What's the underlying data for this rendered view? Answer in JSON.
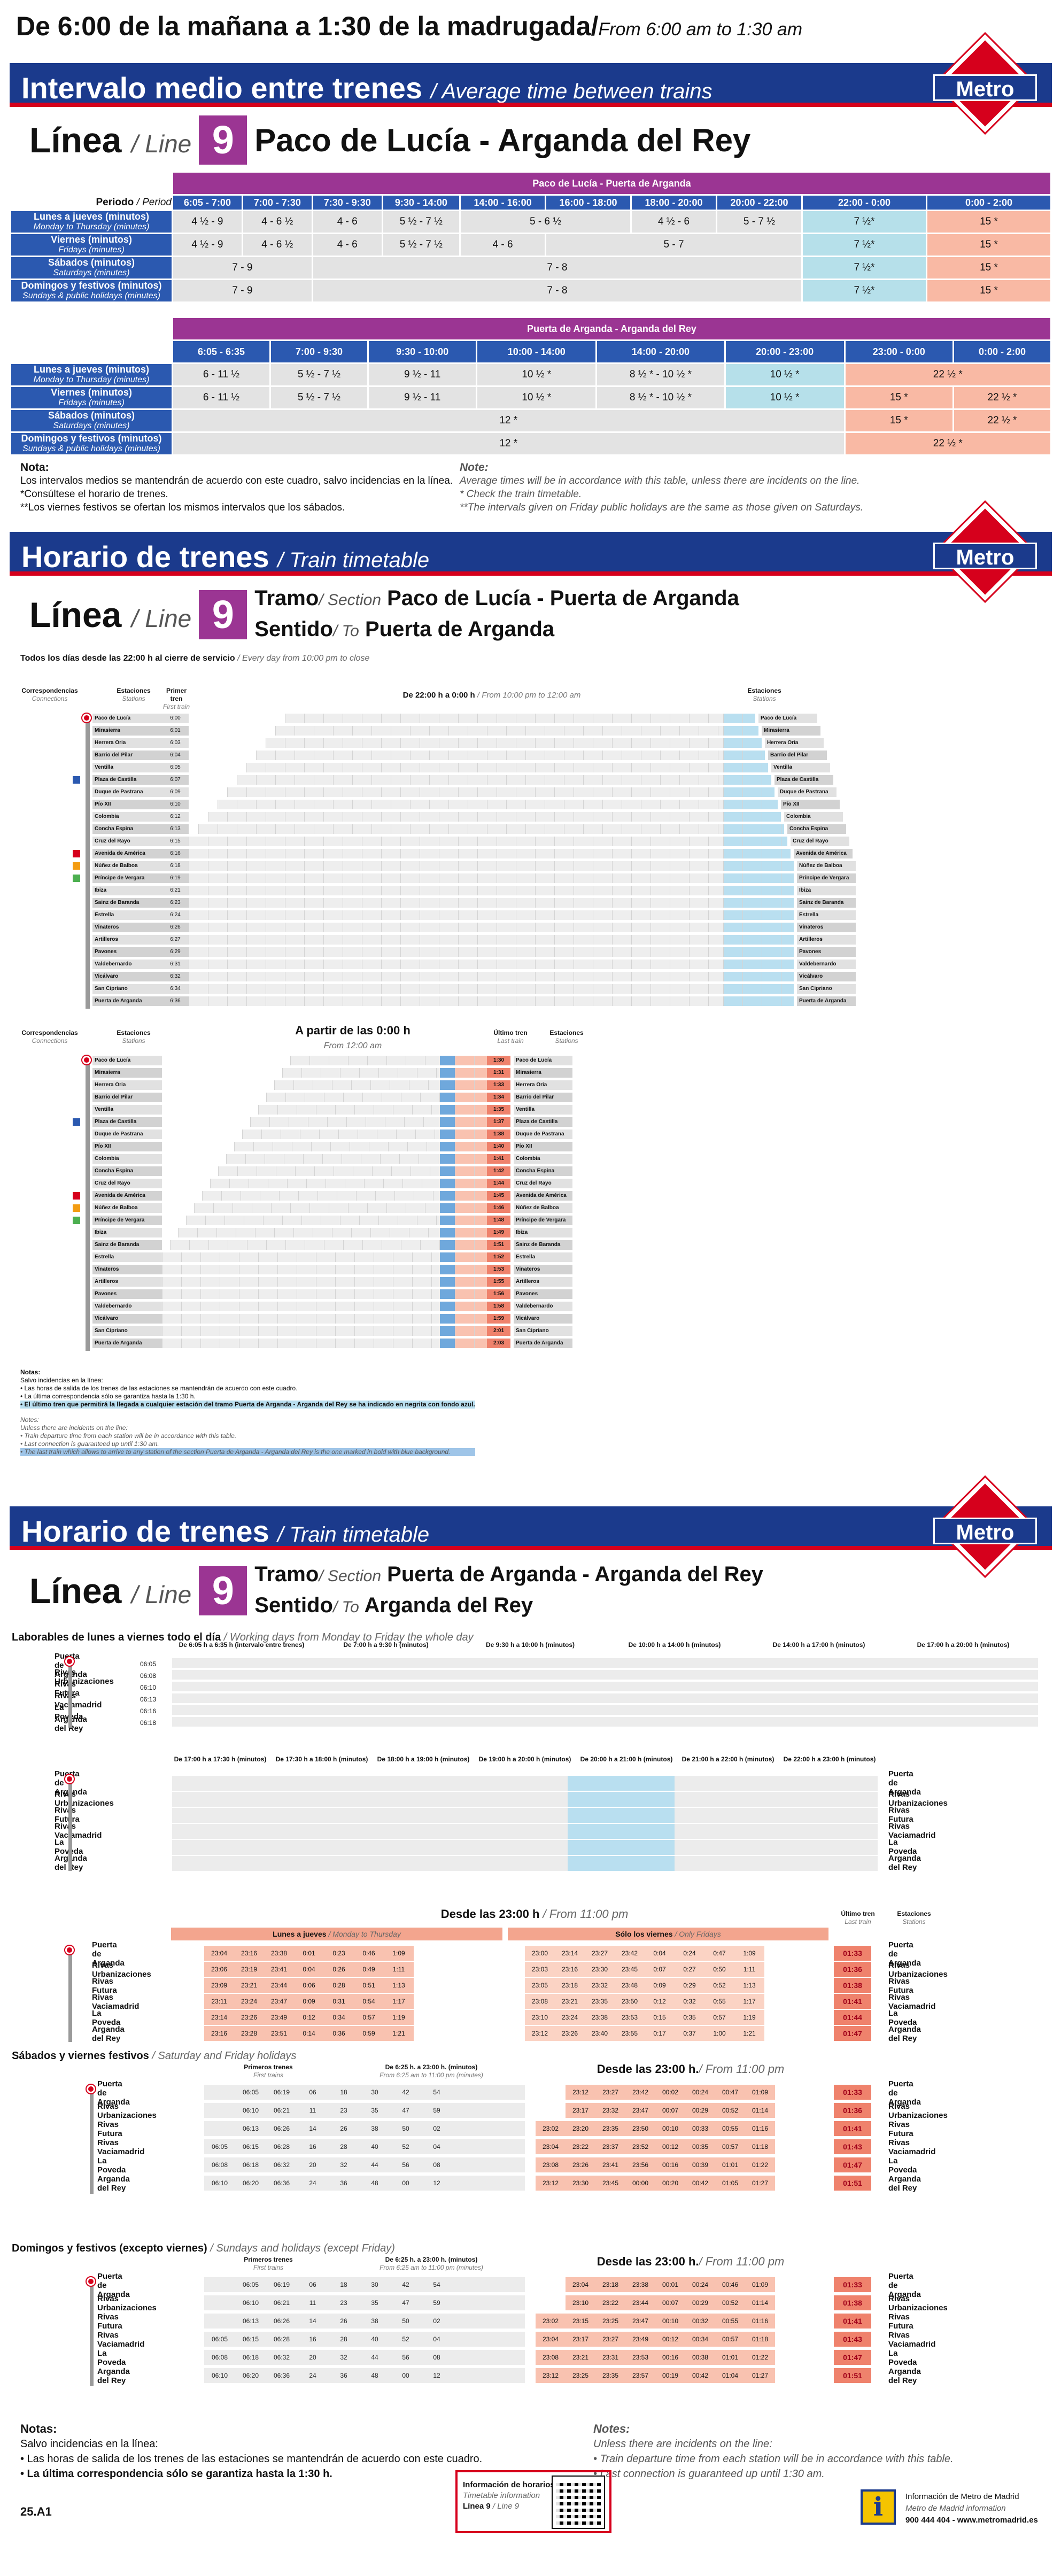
{
  "hours": {
    "es": "De 6:00 de la mañana a 1:30 de la madrugada",
    "sep": "/",
    "en": "From 6:00 am to 1:30 am"
  },
  "logo": {
    "text": "Metro",
    "colors": {
      "red": "#d6001c",
      "blue": "#1b3a8c"
    }
  },
  "band1": {
    "es": "Intervalo medio entre trenes",
    "en": "/ Average time between trains"
  },
  "line_label": {
    "es": "Línea",
    "en": "/ Line",
    "number": "9",
    "color": "#9b3593"
  },
  "line_name": "Paco de Lucía - Arganda del Rey",
  "interval_table_1": {
    "section": "Paco de Lucía - Puerta de Arganda",
    "period_label": "Periodo",
    "period_label_en": "/ Period",
    "headers": [
      "6:05 - 7:00",
      "7:00 - 7:30",
      "7:30 - 9:30",
      "9:30 - 14:00",
      "14:00 - 16:00",
      "16:00 - 18:00",
      "18:00 - 20:00",
      "20:00 - 22:00",
      "22:00 - 0:00",
      "0:00 - 2:00"
    ],
    "rows": [
      {
        "es": "Lunes a jueves",
        "unit": "(minutos)",
        "en": "Monday to Thursday (minutes)",
        "cells": [
          "4 ½ - 9",
          "4 - 6 ½",
          "4 - 6",
          "5 ½ - 7 ½",
          "5 - 6 ½",
          "4 ½ - 6",
          "5 - 7 ½",
          "7 ½*",
          "15 *"
        ]
      },
      {
        "es": "Viernes",
        "unit": "(minutos)",
        "en": "Fridays (minutes)",
        "cells": [
          "4 ½ - 9",
          "4 - 6 ½",
          "4 - 6",
          "5 ½ - 7 ½",
          "4 - 6",
          "5 - 7",
          "7 ½*",
          "15 *"
        ]
      },
      {
        "es": "Sábados",
        "unit": "(minutos)",
        "en": "Saturdays (minutes)",
        "cells": [
          "7 - 9",
          "7 - 8",
          "7 ½*",
          "15 *"
        ]
      },
      {
        "es": "Domingos y festivos",
        "unit": "(minutos)",
        "en": "Sundays & public holidays (minutes)",
        "cells": [
          "7 - 9",
          "7 - 8",
          "7 ½*",
          "15 *"
        ]
      }
    ]
  },
  "interval_table_2": {
    "section": "Puerta de Arganda - Arganda del Rey",
    "headers": [
      "6:05 - 6:35",
      "7:00 - 9:30",
      "9:30 - 10:00",
      "10:00 - 14:00",
      "14:00 - 20:00",
      "20:00 - 23:00",
      "23:00 - 0:00",
      "0:00 - 2:00"
    ],
    "rows": [
      {
        "es": "Lunes a jueves",
        "unit": "(minutos)",
        "en": "Monday to Thursday (minutes)",
        "cells": [
          "6 - 11 ½",
          "5 ½ - 7 ½",
          "9 ½ - 11",
          "10 ½ *",
          "8 ½ * - 10 ½ *",
          "10 ½ *",
          "22 ½ *"
        ]
      },
      {
        "es": "Viernes",
        "unit": "(minutos)",
        "en": "Fridays (minutes)",
        "cells": [
          "6 - 11 ½",
          "5 ½ - 7 ½",
          "9 ½ - 11",
          "10 ½ *",
          "8 ½ * - 10 ½ *",
          "10 ½ *",
          "15 *",
          "22 ½ *"
        ]
      },
      {
        "es": "Sábados",
        "unit": "(minutos)",
        "en": "Saturdays (minutes)",
        "cells": [
          "12 *",
          "15 *",
          "22 ½ *"
        ]
      },
      {
        "es": "Domingos y festivos",
        "unit": "(minutos)",
        "en": "Sundays & public holidays (minutes)",
        "cells": [
          "12 *",
          "22 ½ *"
        ]
      }
    ]
  },
  "notes_1": {
    "title": "Nota:",
    "lines": [
      "Los intervalos medios se mantendrán de acuerdo con este cuadro, salvo incidencias en la línea.",
      "*Consúltese el horario de trenes.",
      "**Los viernes festivos se ofertan los mismos intervalos que los sábados."
    ],
    "title_en": "Note:",
    "lines_en": [
      "Average times will be in accordance with this table, unless there are incidents on the line.",
      "* Check the train timetable.",
      "**The intervals given on Friday public holidays are the same as those given on Saturdays."
    ]
  },
  "band2": {
    "es": "Horario de trenes",
    "en": "/ Train timetable"
  },
  "tt1": {
    "tramo": "Tramo",
    "tramo_en": "/ Section",
    "tramo_val": "Paco de Lucía - Puerta de Arganda",
    "sentido": "Sentido",
    "sentido_en": "/ To",
    "sentido_val": "Puerta de Arganda",
    "caption": "Todos los días desde las 22:00 h al cierre de servicio",
    "caption_en": "/ Every day from 10:00 pm to close",
    "col_conn": "Correspondencias",
    "col_conn_en": "Connections",
    "col_st": "Estaciones",
    "col_st_en": "Stations",
    "col_first": "Primer tren",
    "col_first_en": "First train",
    "block1_head": "De 22:00 h a 0:00 h",
    "block1_head_en": "/ From 10:00 pm to 12:00 am",
    "block2_head": "A partir de las 0:00 h",
    "block2_head_en": "From 12:00 am",
    "last_train": "Último tren",
    "last_train_en": "Last train",
    "stations": [
      "Paco de Lucía",
      "Mirasierra",
      "Herrera Oria",
      "Barrio del Pilar",
      "Ventilla",
      "Plaza de Castilla",
      "Duque de Pastrana",
      "Pío XII",
      "Colombia",
      "Concha Espina",
      "Cruz del Rayo",
      "Avenida de América",
      "Núñez de Balboa",
      "Príncipe de Vergara",
      "Ibiza",
      "Sainz de Baranda",
      "Estrella",
      "Vinateros",
      "Artilleros",
      "Pavones",
      "Valdebernardo",
      "Vicálvaro",
      "San Cipriano",
      "Puerta de Arganda"
    ],
    "first_times": [
      "6:00",
      "6:01",
      "6:03",
      "6:04",
      "6:05",
      "6:07",
      "6:09",
      "6:10",
      "6:12",
      "6:13",
      "6:15",
      "6:16",
      "6:18",
      "6:19",
      "6:21",
      "6:23",
      "6:24",
      "6:26",
      "6:27",
      "6:29",
      "6:31",
      "6:32",
      "6:34",
      "6:36"
    ],
    "last_times": [
      "1:30",
      "1:31",
      "1:33",
      "1:34",
      "1:35",
      "1:37",
      "1:38",
      "1:40",
      "1:41",
      "1:42",
      "1:44",
      "1:45",
      "1:46",
      "1:48",
      "1:49",
      "1:51",
      "1:52",
      "1:53",
      "1:55",
      "1:56",
      "1:58",
      "1:59",
      "2:01",
      "2:03"
    ],
    "notes": [
      "Notas:",
      "Salvo incidencias en la línea:",
      "• Las horas de salida de los trenes de las estaciones se mantendrán de acuerdo con este cuadro.",
      "• La última correspondencia sólo se garantiza hasta la 1:30 h.",
      "• El último tren que permitirá la llegada a cualquier estación del tramo Puerta de Arganda - Arganda del Rey se ha indicado en negrita con fondo azul."
    ],
    "notes_en": [
      "Notes:",
      "Unless there are incidents on the line:",
      "• Train departure time from each station will be in accordance with this table.",
      "• Last connection is guaranteed up until 1:30 am.",
      "• The last train which allows to arrive to any station of the section Puerta de Arganda - Arganda del Rey is the one marked in bold with blue background."
    ]
  },
  "band3": {
    "es": "Horario de trenes",
    "en": "/ Train timetable"
  },
  "tt2": {
    "tramo_val": "Puerta de Arganda - Arganda del Rey",
    "sentido_val": "Arganda del Rey",
    "caption": "Laborables de lunes a viernes todo el día",
    "caption_en": "/ Working days from Monday to Friday the whole day",
    "stations": [
      "Puerta de Arganda",
      "Rivas Urbanizaciones",
      "Rivas Futura",
      "Rivas Vaciamadrid",
      "La Poveda",
      "Arganda del Rey"
    ],
    "first_times": [
      "06:05",
      "06:08",
      "06:10",
      "06:13",
      "06:16",
      "06:18"
    ],
    "weekday_blocks": [
      "De 6:05 h a 6:35 h (intervalo entre trenes)",
      "De 7:00 h a 9:30 h (minutos)",
      "De 9:30 h a 10:00 h (minutos)",
      "De 10:00 h a 14:00 h (minutos)",
      "De 14:00 h a 17:00 h (minutos)",
      "De 17:00 h a 20:00 h (minutos)"
    ],
    "weekday_blocks_2": [
      "De 17:00 h a 17:30 h (minutos)",
      "De 17:30 h a 18:00 h (minutos)",
      "De 18:00 h a 19:00 h (minutos)",
      "De 19:00 h a 20:00 h (minutos)",
      "De 20:00 h a 21:00 h (minutos)",
      "De 21:00 h a 22:00 h (minutos)",
      "De 22:00 h a 23:00 h (minutos)"
    ],
    "night_head": "Desde las 23:00 h",
    "night_head_en": "/ From 11:00 pm",
    "mon_thu": "Lunes a jueves",
    "mon_thu_en": "/ Monday to Thursday",
    "fri_only": "Sólo los viernes",
    "fri_only_en": "/ Only Fridays",
    "night_mon_thu": [
      [
        "23:04",
        "23:16",
        "23:38",
        "0:01",
        "0:23",
        "0:46",
        "1:09"
      ],
      [
        "23:06",
        "23:19",
        "23:41",
        "0:04",
        "0:26",
        "0:49",
        "1:11"
      ],
      [
        "23:09",
        "23:21",
        "23:44",
        "0:06",
        "0:28",
        "0:51",
        "1:13"
      ],
      [
        "23:11",
        "23:24",
        "23:47",
        "0:09",
        "0:31",
        "0:54",
        "1:17"
      ],
      [
        "23:14",
        "23:26",
        "23:49",
        "0:12",
        "0:34",
        "0:57",
        "1:19"
      ],
      [
        "23:16",
        "23:28",
        "23:51",
        "0:14",
        "0:36",
        "0:59",
        "1:21"
      ]
    ],
    "night_fri": [
      [
        "23:00",
        "23:14",
        "23:27",
        "23:42",
        "0:04",
        "0:24",
        "0:47",
        "1:09"
      ],
      [
        "23:03",
        "23:16",
        "23:30",
        "23:45",
        "0:07",
        "0:27",
        "0:50",
        "1:11"
      ],
      [
        "23:05",
        "23:18",
        "23:32",
        "23:48",
        "0:09",
        "0:29",
        "0:52",
        "1:13"
      ],
      [
        "23:08",
        "23:21",
        "23:35",
        "23:50",
        "0:12",
        "0:32",
        "0:55",
        "1:17"
      ],
      [
        "23:10",
        "23:24",
        "23:38",
        "23:53",
        "0:15",
        "0:35",
        "0:57",
        "1:19"
      ],
      [
        "23:12",
        "23:26",
        "23:40",
        "23:55",
        "0:17",
        "0:37",
        "1:00",
        "1:21"
      ]
    ],
    "night_last": [
      "01:33",
      "01:36",
      "01:38",
      "01:41",
      "01:44",
      "01:47"
    ],
    "sat_title": "Sábados y viernes festivos",
    "sat_title_en": "/ Saturday and Friday holidays",
    "sun_title": "Domingos y festivos (excepto viernes)",
    "sun_title_en": "/ Sundays and holidays (except Friday)",
    "first_trains": "Primeros trenes",
    "first_trains_en": "First trains",
    "day_block": "De 6:25 h. a 23:00 h. (minutos)",
    "day_block_en": "From 6:25 am to 11:00 pm (minutes)",
    "night_head2": "Desde las 23:00 h.",
    "night_head2_en": "/ From 11:00 pm",
    "sat_first": [
      [
        "",
        "06:05",
        "06:19"
      ],
      [
        "",
        "06:10",
        "06:21"
      ],
      [
        "",
        "06:13",
        "06:26"
      ],
      [
        "06:05",
        "06:15",
        "06:28"
      ],
      [
        "06:08",
        "06:18",
        "06:32"
      ],
      [
        "06:10",
        "06:20",
        "06:36"
      ]
    ],
    "sat_mins": [
      [
        "06",
        "18",
        "30",
        "42",
        "54"
      ],
      [
        "11",
        "23",
        "35",
        "47",
        "59"
      ],
      [
        "14",
        "26",
        "38",
        "50",
        "02"
      ],
      [
        "16",
        "28",
        "40",
        "52",
        "04"
      ],
      [
        "20",
        "32",
        "44",
        "56",
        "08"
      ],
      [
        "24",
        "36",
        "48",
        "00",
        "12"
      ]
    ],
    "sat_night": [
      [
        "23:12",
        "23:27",
        "23:42",
        "00:02",
        "00:24",
        "00:47",
        "01:09"
      ],
      [
        "23:17",
        "23:32",
        "23:47",
        "00:07",
        "00:29",
        "00:52",
        "01:14"
      ],
      [
        "23:02",
        "23:20",
        "23:35",
        "23:50",
        "00:10",
        "00:33",
        "00:55",
        "01:16"
      ],
      [
        "23:04",
        "23:22",
        "23:37",
        "23:52",
        "00:12",
        "00:35",
        "00:57",
        "01:18"
      ],
      [
        "23:08",
        "23:26",
        "23:41",
        "23:56",
        "00:16",
        "00:39",
        "01:01",
        "01:22"
      ],
      [
        "23:12",
        "23:30",
        "23:45",
        "00:00",
        "00:20",
        "00:42",
        "01:05",
        "01:27"
      ]
    ],
    "sat_last": [
      "01:33",
      "01:36",
      "01:41",
      "01:43",
      "01:47",
      "01:51"
    ],
    "sun_night": [
      [
        "23:04",
        "23:18",
        "23:38",
        "00:01",
        "00:24",
        "00:46",
        "01:09"
      ],
      [
        "23:10",
        "23:22",
        "23:44",
        "00:07",
        "00:29",
        "00:52",
        "01:14"
      ],
      [
        "23:02",
        "23:15",
        "23:25",
        "23:47",
        "00:10",
        "00:32",
        "00:55",
        "01:16"
      ],
      [
        "23:04",
        "23:17",
        "23:27",
        "23:49",
        "00:12",
        "00:34",
        "00:57",
        "01:18"
      ],
      [
        "23:08",
        "23:21",
        "23:31",
        "23:53",
        "00:16",
        "00:38",
        "01:01",
        "01:22"
      ],
      [
        "23:12",
        "23:25",
        "23:35",
        "23:57",
        "00:19",
        "00:42",
        "01:04",
        "01:27"
      ]
    ],
    "sun_last": [
      "01:33",
      "01:38",
      "01:41",
      "01:43",
      "01:47",
      "01:51"
    ]
  },
  "footer": {
    "notes_es_title": "Notas:",
    "notes_es": [
      "Salvo incidencias en la línea:",
      "• Las horas de salida de los trenes de las estaciones se mantendrán de acuerdo con este cuadro.",
      "• La última correspondencia sólo se garantiza hasta la 1:30 h."
    ],
    "notes_en_title": "Notes:",
    "notes_en": [
      "Unless there are incidents on the line:",
      "• Train departure time from each station will be in accordance with this table.",
      "• Last connection is guaranteed up until 1:30 am."
    ],
    "code": "25.A1",
    "info_title": "Información de horarios",
    "info_en": "Timetable information",
    "info_line": "Línea 9",
    "info_line_en": "/ Line 9",
    "contact_1": "Información de Metro de Madrid",
    "contact_2": "Metro de Madrid information",
    "contact_3": "900 444 404 - www.metromadrid.es",
    "info_icon": "i"
  }
}
